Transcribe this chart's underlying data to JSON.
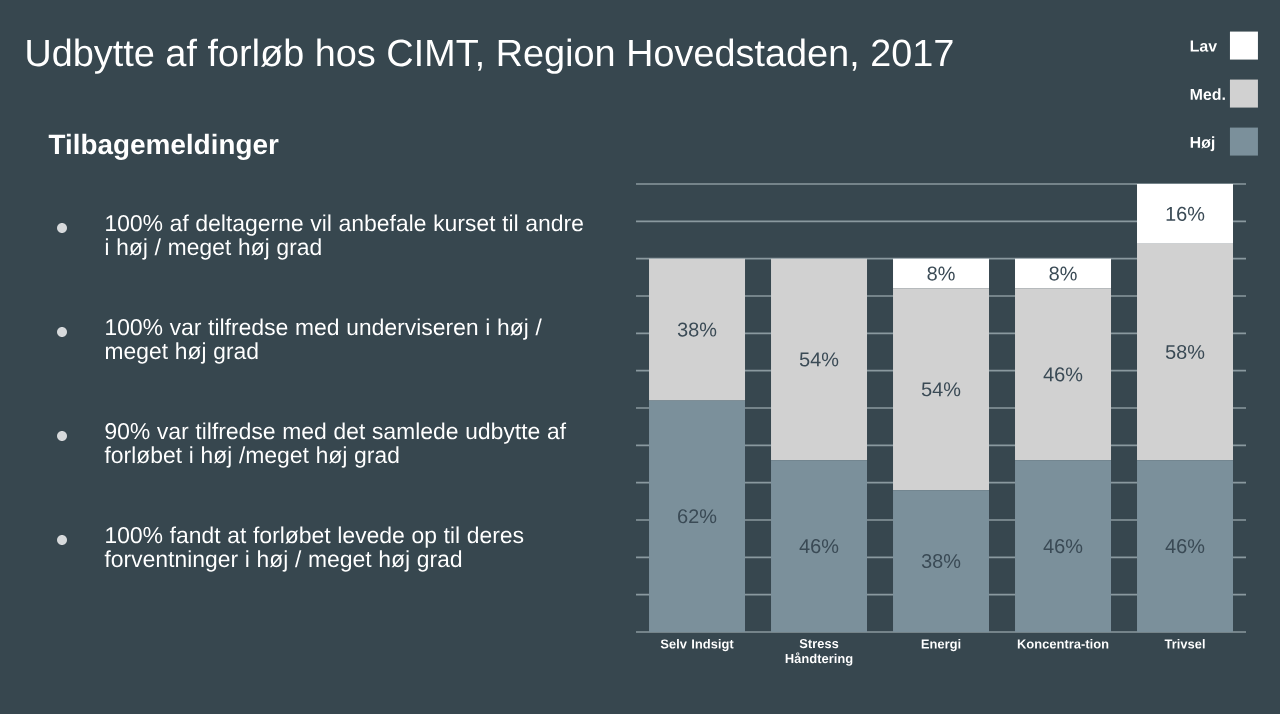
{
  "chart_data": {
    "type": "bar",
    "stacked": true,
    "title": "Udbytte af forløb hos CIMT, Region Hovedstaden, 2017",
    "subtitle": "Tilbagemeldinger",
    "categories": [
      "Selv Indsigt",
      "Stress Håndtering",
      "Energi",
      "Koncentra-tion",
      "Trivsel"
    ],
    "series": [
      {
        "name": "Høj",
        "color": "#7b909b",
        "values": [
          62,
          46,
          38,
          46,
          46
        ],
        "value_labels": [
          "62%",
          "46%",
          "38%",
          "46%",
          "46%"
        ]
      },
      {
        "name": "Med.",
        "color": "#d1d1d1",
        "values": [
          38,
          54,
          54,
          46,
          58
        ],
        "value_labels": [
          "38%",
          "54%",
          "54%",
          "46%",
          "58%"
        ]
      },
      {
        "name": "Lav",
        "color": "#ffffff",
        "values": [
          null,
          null,
          8,
          8,
          16
        ],
        "value_labels": [
          null,
          null,
          "8%",
          "8%",
          "16%"
        ]
      }
    ],
    "ylim": [
      0,
      120
    ],
    "yticks": [
      {
        "value": 0,
        "label": null
      },
      {
        "value": 10,
        "label": null
      },
      {
        "value": 20,
        "label": null
      },
      {
        "value": 30,
        "label": null
      },
      {
        "value": 40,
        "label": null
      },
      {
        "value": 50,
        "label": null
      },
      {
        "value": 60,
        "label": null
      },
      {
        "value": 70,
        "label": null
      },
      {
        "value": 80,
        "label": null
      },
      {
        "value": 90,
        "label": null
      },
      {
        "value": 100,
        "label": null
      },
      {
        "value": 110,
        "label": null
      },
      {
        "value": 120,
        "label": null
      }
    ],
    "grid": "y",
    "tick_labels": "x",
    "legend": "top right",
    "annotations": [
      "100% af deltagerne vil anbefale kurset til andre i høj / meget høj grad",
      "100% var tilfredse med underviseren i høj / meget høj grad",
      "90% var tilfredse med det samlede udbytte af forløbet i høj /meget høj grad",
      "100% fandt at forløbet levede op til deres forventninger i høj / meget høj grad"
    ]
  }
}
